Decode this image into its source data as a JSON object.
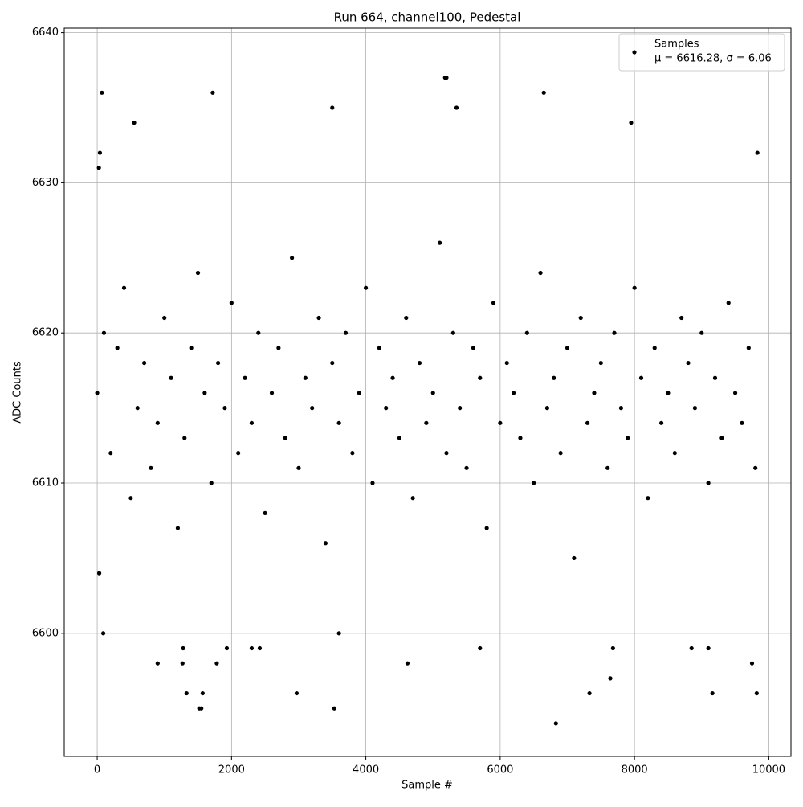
{
  "chart_data": {
    "type": "scatter",
    "title": "Run 664, channel100, Pedestal",
    "x_label": "Sample #",
    "y_label": "ADC Counts",
    "series": [
      {
        "name": "Samples",
        "color": "#000000",
        "x": [
          0,
          100,
          200,
          300,
          400,
          500,
          600,
          700,
          800,
          900,
          1000,
          1100,
          1200,
          1300,
          1400,
          1500,
          1600,
          1700,
          1800,
          1900,
          2000,
          2100,
          2200,
          2300,
          2400,
          2500,
          2600,
          2700,
          2800,
          2900,
          3000,
          3100,
          3200,
          3300,
          3400,
          3500,
          3600,
          3700,
          3800,
          3900,
          4000,
          4100,
          4200,
          4300,
          4400,
          4500,
          4600,
          4700,
          4800,
          4900,
          5000,
          5100,
          5200,
          5300,
          5400,
          5500,
          5600,
          5700,
          5800,
          5900,
          6000,
          6100,
          6200,
          6300,
          6400,
          6500,
          6600,
          6700,
          6800,
          6900,
          7000,
          7100,
          7200,
          7300,
          7400,
          7500,
          7600,
          7700,
          7800,
          7900,
          8000,
          8100,
          8200,
          8300,
          8400,
          8500,
          8600,
          8700,
          8800,
          8900,
          9000,
          9100,
          9200,
          9300,
          9400,
          9500,
          9600,
          9700,
          9800,
          30,
          25,
          40,
          70,
          90,
          550,
          900,
          1280,
          1270,
          1330,
          1520,
          1550,
          1570,
          1720,
          1780,
          1930,
          2300,
          2420,
          2970,
          3500,
          3530,
          3600,
          4620,
          5180,
          5200,
          5350,
          5700,
          6650,
          6830,
          7330,
          7640,
          7680,
          7950,
          8850,
          9100,
          9160,
          9820,
          9830,
          9750
        ],
        "values": [
          6616,
          6620,
          6612,
          6619,
          6623,
          6609,
          6615,
          6618,
          6611,
          6614,
          6621,
          6617,
          6607,
          6613,
          6619,
          6624,
          6616,
          6610,
          6618,
          6615,
          6622,
          6612,
          6617,
          6614,
          6620,
          6608,
          6616,
          6619,
          6613,
          6625,
          6611,
          6617,
          6615,
          6621,
          6606,
          6618,
          6614,
          6620,
          6612,
          6616,
          6623,
          6610,
          6619,
          6615,
          6617,
          6613,
          6621,
          6609,
          6618,
          6614,
          6616,
          6626,
          6612,
          6620,
          6615,
          6611,
          6619,
          6617,
          6607,
          6622,
          6614,
          6618,
          6616,
          6613,
          6620,
          6610,
          6624,
          6615,
          6617,
          6612,
          6619,
          6605,
          6621,
          6614,
          6616,
          6618,
          6611,
          6620,
          6615,
          6613,
          6623,
          6617,
          6609,
          6619,
          6614,
          6616,
          6612,
          6621,
          6618,
          6615,
          6620,
          6610,
          6617,
          6613,
          6622,
          6616,
          6614,
          6619,
          6611,
          6604,
          6631,
          6632,
          6636,
          6600,
          6634,
          6598,
          6599,
          6598,
          6596,
          6595,
          6595,
          6596,
          6636,
          6598,
          6599,
          6599,
          6599,
          6596,
          6635,
          6595,
          6600,
          6598,
          6637,
          6637,
          6635,
          6599,
          6636,
          6594,
          6596,
          6597,
          6599,
          6634,
          6599,
          6599,
          6596,
          6596,
          6632,
          6598
        ]
      }
    ],
    "legend_text": "μ = 6616.28, σ = 6.06",
    "legend_position": "upper right",
    "xlim": [
      -491,
      10330
    ],
    "ylim": [
      6591.8,
      6640.3
    ],
    "xticks": [
      0,
      2000,
      4000,
      6000,
      8000,
      10000
    ],
    "yticks": [
      6600,
      6610,
      6620,
      6630,
      6640
    ],
    "grid": true
  }
}
